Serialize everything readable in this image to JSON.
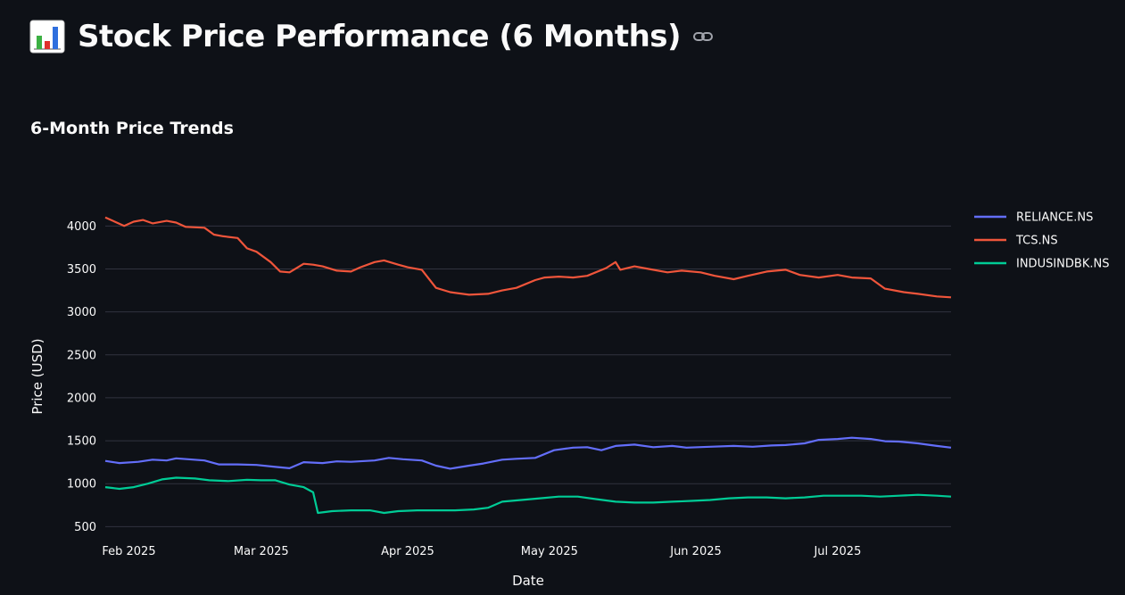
{
  "page": {
    "title": "Stock Price Performance (6 Months)",
    "title_icon": "bar-chart-emoji-icon",
    "link_icon": "link-icon",
    "subheader": "6-Month Price Trends"
  },
  "chart_data": {
    "type": "line",
    "title": "",
    "xlabel": "Date",
    "ylabel": "Price (USD)",
    "xlim": [
      "2025-01-27",
      "2025-07-25"
    ],
    "ylim": [
      400,
      4180
    ],
    "y_ticks": [
      500,
      1000,
      1500,
      2000,
      2500,
      3000,
      3500,
      4000
    ],
    "x_ticks": [
      {
        "date": "2025-02-01",
        "label": "Feb 2025"
      },
      {
        "date": "2025-03-01",
        "label": "Mar 2025"
      },
      {
        "date": "2025-04-01",
        "label": "Apr 2025"
      },
      {
        "date": "2025-05-01",
        "label": "May 2025"
      },
      {
        "date": "2025-06-01",
        "label": "Jun 2025"
      },
      {
        "date": "2025-07-01",
        "label": "Jul 2025"
      }
    ],
    "grid": "horizontal",
    "legend_position": "top-right",
    "series": [
      {
        "name": "RELIANCE.NS",
        "color": "#636efa",
        "points": [
          [
            "2025-01-27",
            1265
          ],
          [
            "2025-01-30",
            1240
          ],
          [
            "2025-02-03",
            1255
          ],
          [
            "2025-02-06",
            1280
          ],
          [
            "2025-02-09",
            1270
          ],
          [
            "2025-02-11",
            1295
          ],
          [
            "2025-02-17",
            1270
          ],
          [
            "2025-02-20",
            1225
          ],
          [
            "2025-02-24",
            1225
          ],
          [
            "2025-02-28",
            1218
          ],
          [
            "2025-03-04",
            1195
          ],
          [
            "2025-03-07",
            1180
          ],
          [
            "2025-03-10",
            1250
          ],
          [
            "2025-03-14",
            1240
          ],
          [
            "2025-03-17",
            1260
          ],
          [
            "2025-03-20",
            1255
          ],
          [
            "2025-03-25",
            1270
          ],
          [
            "2025-03-28",
            1300
          ],
          [
            "2025-03-31",
            1285
          ],
          [
            "2025-04-04",
            1270
          ],
          [
            "2025-04-07",
            1210
          ],
          [
            "2025-04-10",
            1175
          ],
          [
            "2025-04-14",
            1210
          ],
          [
            "2025-04-17",
            1235
          ],
          [
            "2025-04-21",
            1280
          ],
          [
            "2025-04-24",
            1290
          ],
          [
            "2025-04-28",
            1300
          ],
          [
            "2025-05-02",
            1390
          ],
          [
            "2025-05-06",
            1420
          ],
          [
            "2025-05-09",
            1425
          ],
          [
            "2025-05-12",
            1390
          ],
          [
            "2025-05-15",
            1440
          ],
          [
            "2025-05-19",
            1455
          ],
          [
            "2025-05-23",
            1425
          ],
          [
            "2025-05-27",
            1440
          ],
          [
            "2025-05-30",
            1420
          ],
          [
            "2025-06-04",
            1430
          ],
          [
            "2025-06-09",
            1440
          ],
          [
            "2025-06-13",
            1430
          ],
          [
            "2025-06-17",
            1445
          ],
          [
            "2025-06-20",
            1450
          ],
          [
            "2025-06-24",
            1470
          ],
          [
            "2025-06-27",
            1510
          ],
          [
            "2025-07-01",
            1520
          ],
          [
            "2025-07-04",
            1535
          ],
          [
            "2025-07-08",
            1520
          ],
          [
            "2025-07-11",
            1495
          ],
          [
            "2025-07-14",
            1490
          ],
          [
            "2025-07-18",
            1470
          ],
          [
            "2025-07-22",
            1440
          ],
          [
            "2025-07-25",
            1420
          ]
        ]
      },
      {
        "name": "TCS.NS",
        "color": "#ef553b",
        "points": [
          [
            "2025-01-27",
            4100
          ],
          [
            "2025-01-29",
            4050
          ],
          [
            "2025-01-31",
            4000
          ],
          [
            "2025-02-02",
            4050
          ],
          [
            "2025-02-04",
            4070
          ],
          [
            "2025-02-06",
            4030
          ],
          [
            "2025-02-09",
            4060
          ],
          [
            "2025-02-11",
            4040
          ],
          [
            "2025-02-13",
            3990
          ],
          [
            "2025-02-17",
            3980
          ],
          [
            "2025-02-19",
            3900
          ],
          [
            "2025-02-21",
            3880
          ],
          [
            "2025-02-24",
            3860
          ],
          [
            "2025-02-26",
            3740
          ],
          [
            "2025-02-28",
            3700
          ],
          [
            "2025-03-03",
            3580
          ],
          [
            "2025-03-05",
            3470
          ],
          [
            "2025-03-07",
            3460
          ],
          [
            "2025-03-10",
            3560
          ],
          [
            "2025-03-12",
            3550
          ],
          [
            "2025-03-14",
            3530
          ],
          [
            "2025-03-17",
            3480
          ],
          [
            "2025-03-20",
            3470
          ],
          [
            "2025-03-22",
            3520
          ],
          [
            "2025-03-25",
            3580
          ],
          [
            "2025-03-27",
            3600
          ],
          [
            "2025-03-30",
            3550
          ],
          [
            "2025-04-01",
            3520
          ],
          [
            "2025-04-04",
            3490
          ],
          [
            "2025-04-07",
            3280
          ],
          [
            "2025-04-10",
            3230
          ],
          [
            "2025-04-14",
            3200
          ],
          [
            "2025-04-18",
            3210
          ],
          [
            "2025-04-21",
            3250
          ],
          [
            "2025-04-24",
            3280
          ],
          [
            "2025-04-28",
            3370
          ],
          [
            "2025-04-30",
            3400
          ],
          [
            "2025-05-03",
            3410
          ],
          [
            "2025-05-06",
            3400
          ],
          [
            "2025-05-09",
            3420
          ],
          [
            "2025-05-13",
            3510
          ],
          [
            "2025-05-15",
            3580
          ],
          [
            "2025-05-16",
            3490
          ],
          [
            "2025-05-19",
            3530
          ],
          [
            "2025-05-22",
            3500
          ],
          [
            "2025-05-26",
            3460
          ],
          [
            "2025-05-29",
            3480
          ],
          [
            "2025-06-02",
            3460
          ],
          [
            "2025-06-05",
            3420
          ],
          [
            "2025-06-09",
            3380
          ],
          [
            "2025-06-12",
            3420
          ],
          [
            "2025-06-16",
            3470
          ],
          [
            "2025-06-20",
            3490
          ],
          [
            "2025-06-23",
            3430
          ],
          [
            "2025-06-27",
            3400
          ],
          [
            "2025-07-01",
            3430
          ],
          [
            "2025-07-04",
            3400
          ],
          [
            "2025-07-08",
            3390
          ],
          [
            "2025-07-11",
            3270
          ],
          [
            "2025-07-15",
            3230
          ],
          [
            "2025-07-18",
            3210
          ],
          [
            "2025-07-22",
            3180
          ],
          [
            "2025-07-25",
            3170
          ]
        ]
      },
      {
        "name": "INDUSINDBK.NS",
        "color": "#00cc96",
        "points": [
          [
            "2025-01-27",
            960
          ],
          [
            "2025-01-30",
            940
          ],
          [
            "2025-02-02",
            960
          ],
          [
            "2025-02-05",
            1000
          ],
          [
            "2025-02-08",
            1050
          ],
          [
            "2025-02-11",
            1070
          ],
          [
            "2025-02-15",
            1060
          ],
          [
            "2025-02-18",
            1040
          ],
          [
            "2025-02-22",
            1030
          ],
          [
            "2025-02-26",
            1045
          ],
          [
            "2025-03-01",
            1040
          ],
          [
            "2025-03-04",
            1040
          ],
          [
            "2025-03-07",
            990
          ],
          [
            "2025-03-10",
            960
          ],
          [
            "2025-03-12",
            900
          ],
          [
            "2025-03-13",
            660
          ],
          [
            "2025-03-16",
            680
          ],
          [
            "2025-03-20",
            690
          ],
          [
            "2025-03-24",
            690
          ],
          [
            "2025-03-27",
            660
          ],
          [
            "2025-03-30",
            680
          ],
          [
            "2025-04-03",
            690
          ],
          [
            "2025-04-07",
            690
          ],
          [
            "2025-04-11",
            690
          ],
          [
            "2025-04-15",
            700
          ],
          [
            "2025-04-18",
            720
          ],
          [
            "2025-04-21",
            790
          ],
          [
            "2025-04-25",
            810
          ],
          [
            "2025-04-29",
            830
          ],
          [
            "2025-05-03",
            850
          ],
          [
            "2025-05-07",
            850
          ],
          [
            "2025-05-11",
            820
          ],
          [
            "2025-05-15",
            790
          ],
          [
            "2025-05-19",
            780
          ],
          [
            "2025-05-23",
            780
          ],
          [
            "2025-05-27",
            790
          ],
          [
            "2025-05-31",
            800
          ],
          [
            "2025-06-04",
            810
          ],
          [
            "2025-06-08",
            830
          ],
          [
            "2025-06-12",
            840
          ],
          [
            "2025-06-16",
            840
          ],
          [
            "2025-06-20",
            830
          ],
          [
            "2025-06-24",
            840
          ],
          [
            "2025-06-28",
            860
          ],
          [
            "2025-07-02",
            860
          ],
          [
            "2025-07-06",
            860
          ],
          [
            "2025-07-10",
            850
          ],
          [
            "2025-07-14",
            860
          ],
          [
            "2025-07-18",
            870
          ],
          [
            "2025-07-22",
            860
          ],
          [
            "2025-07-25",
            850
          ]
        ]
      }
    ]
  }
}
